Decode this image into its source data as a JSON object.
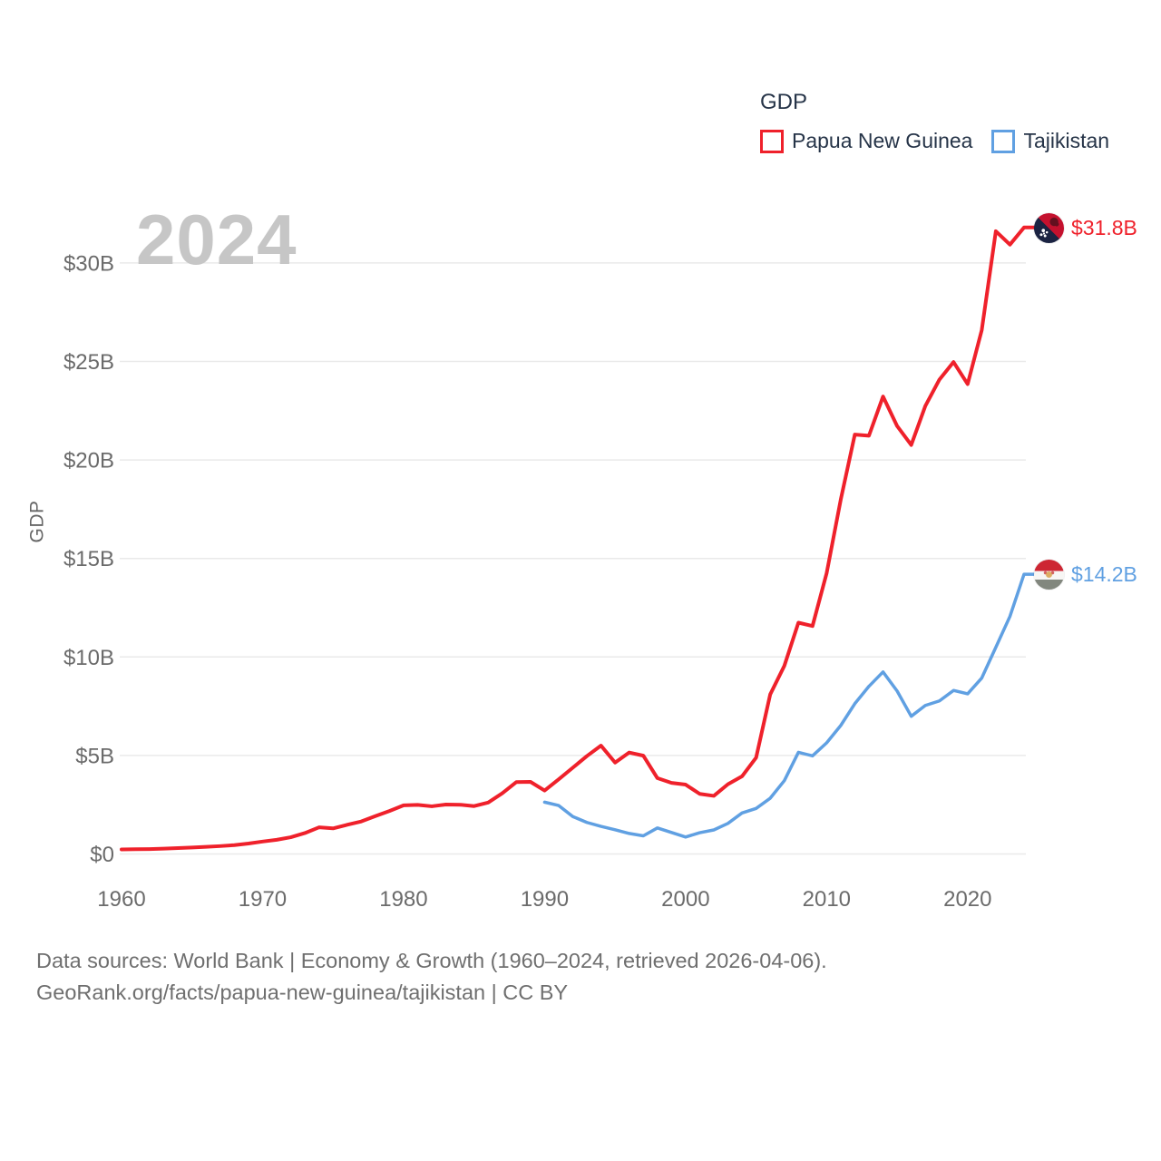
{
  "legend": {
    "title": "GDP",
    "items": [
      {
        "label": "Papua New Guinea",
        "color": "#ef212b"
      },
      {
        "label": "Tajikistan",
        "color": "#60a0e2"
      }
    ]
  },
  "watermark_year": "2024",
  "y_axis_title": "GDP",
  "end_labels": [
    {
      "series": "Papua New Guinea",
      "value": "$31.8B",
      "flag_icon": "papua-new-guinea-flag"
    },
    {
      "series": "Tajikistan",
      "value": "$14.2B",
      "flag_icon": "tajikistan-flag"
    }
  ],
  "footer": {
    "line1": "Data sources: World Bank | Economy & Growth (1960–2024, retrieved 2026-04-06).",
    "line2": "GeoRank.org/facts/papua-new-guinea/tajikistan | CC BY"
  },
  "chart_data": {
    "type": "line",
    "title": "GDP",
    "xlabel": "",
    "ylabel": "GDP",
    "units": "billions USD",
    "xlim": [
      1960,
      2024
    ],
    "ylim": [
      0,
      32
    ],
    "grid": true,
    "legend_position": "top-right",
    "yticks": [
      {
        "value": 0,
        "label": "$0"
      },
      {
        "value": 5,
        "label": "$5B"
      },
      {
        "value": 10,
        "label": "$10B"
      },
      {
        "value": 15,
        "label": "$15B"
      },
      {
        "value": 20,
        "label": "$20B"
      },
      {
        "value": 25,
        "label": "$25B"
      },
      {
        "value": 30,
        "label": "$30B"
      }
    ],
    "xticks": [
      1960,
      1970,
      1980,
      1990,
      2000,
      2010,
      2020
    ],
    "series": [
      {
        "name": "Papua New Guinea",
        "color": "#ef212b",
        "end_value_label": "$31.8B",
        "years": [
          1960,
          1961,
          1962,
          1963,
          1964,
          1965,
          1966,
          1967,
          1968,
          1969,
          1970,
          1971,
          1972,
          1973,
          1974,
          1975,
          1976,
          1977,
          1978,
          1979,
          1980,
          1981,
          1982,
          1983,
          1984,
          1985,
          1986,
          1987,
          1988,
          1989,
          1990,
          1991,
          1992,
          1993,
          1994,
          1995,
          1996,
          1997,
          1998,
          1999,
          2000,
          2001,
          2002,
          2003,
          2004,
          2005,
          2006,
          2007,
          2008,
          2009,
          2010,
          2011,
          2012,
          2013,
          2014,
          2015,
          2016,
          2017,
          2018,
          2019,
          2020,
          2021,
          2022,
          2023,
          2024
        ],
        "values": [
          0.23,
          0.24,
          0.25,
          0.27,
          0.3,
          0.33,
          0.36,
          0.4,
          0.45,
          0.53,
          0.63,
          0.72,
          0.85,
          1.06,
          1.35,
          1.3,
          1.48,
          1.65,
          1.92,
          2.18,
          2.47,
          2.49,
          2.42,
          2.51,
          2.5,
          2.43,
          2.61,
          3.08,
          3.65,
          3.66,
          3.22,
          3.79,
          4.38,
          4.97,
          5.5,
          4.64,
          5.15,
          4.99,
          3.85,
          3.61,
          3.52,
          3.05,
          2.95,
          3.54,
          3.94,
          4.89,
          8.1,
          9.55,
          11.74,
          11.57,
          14.25,
          17.98,
          21.29,
          21.23,
          23.22,
          21.72,
          20.76,
          22.74,
          24.08,
          24.97,
          23.85,
          26.59,
          31.61,
          30.93,
          31.8
        ]
      },
      {
        "name": "Tajikistan",
        "color": "#60a0e2",
        "end_value_label": "$14.2B",
        "years": [
          1990,
          1991,
          1992,
          1993,
          1994,
          1995,
          1996,
          1997,
          1998,
          1999,
          2000,
          2001,
          2002,
          2003,
          2004,
          2005,
          2006,
          2007,
          2008,
          2009,
          2010,
          2011,
          2012,
          2013,
          2014,
          2015,
          2016,
          2017,
          2018,
          2019,
          2020,
          2021,
          2022,
          2023,
          2024
        ],
        "values": [
          2.63,
          2.46,
          1.9,
          1.6,
          1.4,
          1.23,
          1.04,
          0.92,
          1.32,
          1.09,
          0.86,
          1.08,
          1.22,
          1.55,
          2.08,
          2.31,
          2.83,
          3.72,
          5.16,
          4.98,
          5.64,
          6.52,
          7.63,
          8.51,
          9.24,
          8.27,
          6.99,
          7.54,
          7.77,
          8.3,
          8.13,
          8.93,
          10.49,
          12.06,
          14.2
        ]
      }
    ]
  }
}
